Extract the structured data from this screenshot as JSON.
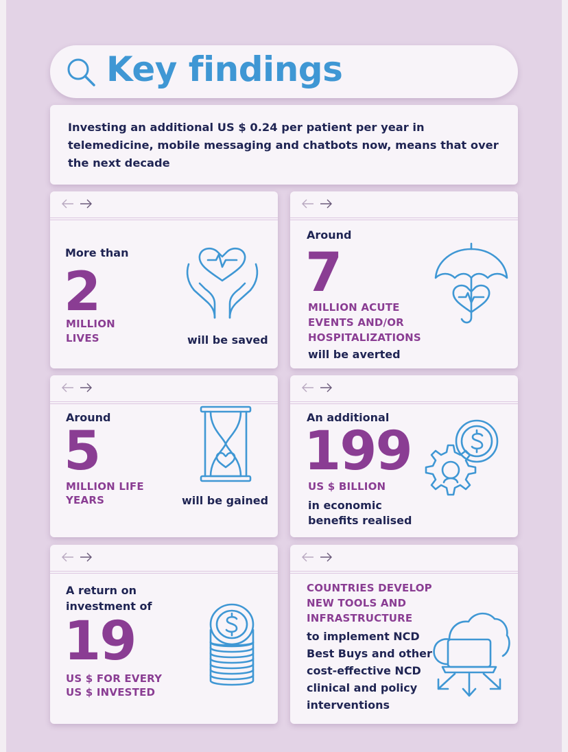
{
  "title": "Key findings",
  "intro": "Investing an additional US $ 0.24 per patient per year in telemedicine, mobile messaging and chatbots now, means that over the next decade",
  "cards": [
    {
      "prefix": "More than",
      "number": "2",
      "unit_line1": "MILLION",
      "unit_line2": "LIVES",
      "suffix": "will be saved",
      "icon": "heart-hands-icon"
    },
    {
      "prefix": "Around",
      "number": "7",
      "unit_line1": "MILLION ACUTE",
      "unit_line2": "EVENTS AND/OR",
      "unit_line3": "HOSPITALIZATIONS",
      "suffix": "will be averted",
      "icon": "umbrella-heart-icon"
    },
    {
      "prefix": "Around",
      "number": "5",
      "unit_line1": "MILLION LIFE",
      "unit_line2": "YEARS",
      "suffix": "will be gained",
      "icon": "hourglass-icon"
    },
    {
      "prefix": "An additional",
      "number": "199",
      "unit_line1": "US $ BILLION",
      "suffix_line1": "in economic",
      "suffix_line2": "benefits realised",
      "icon": "gear-coin-icon"
    },
    {
      "prefix_line1": "A return on",
      "prefix_line2": "investment of",
      "number": "19",
      "unit_line1": "US $ FOR EVERY",
      "unit_line2": "US $ INVESTED",
      "icon": "coin-stack-icon"
    },
    {
      "heading_line1": "COUNTRIES DEVELOP",
      "heading_line2": "NEW TOOLS AND",
      "heading_line3": "INFRASTRUCTURE",
      "body_lines": [
        "to implement NCD",
        "Best Buys and other",
        "cost-effective NCD",
        "clinical and policy",
        "interventions"
      ],
      "icon": "cloud-laptop-icon"
    }
  ],
  "colors": {
    "background": "#e3d3e6",
    "card": "#f8f4f9",
    "title": "#3f97d4",
    "dark_text": "#1f2453",
    "accent": "#8a3d93",
    "icon_stroke": "#3f97d4"
  }
}
